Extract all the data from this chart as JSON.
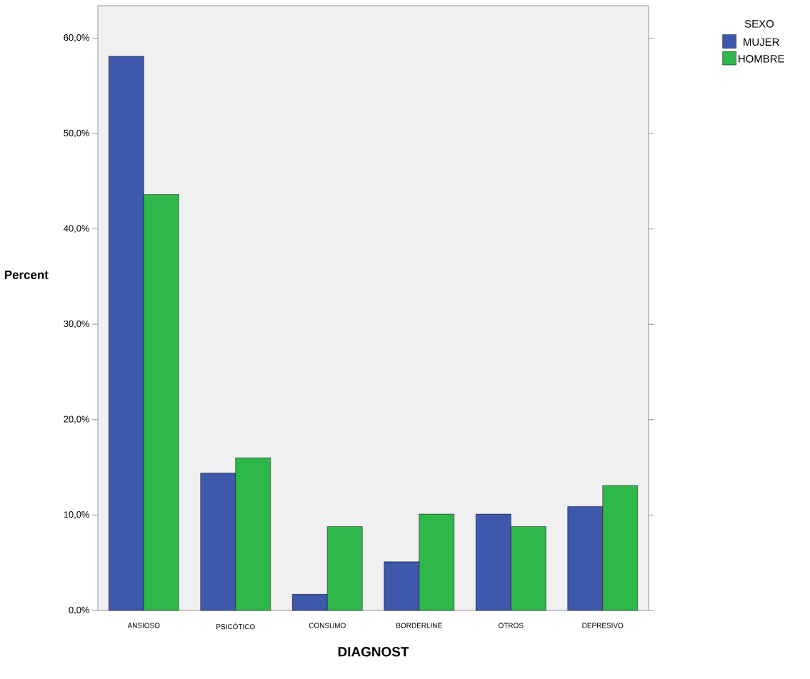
{
  "chart_data": {
    "type": "bar",
    "xlabel": "DIAGNOST",
    "ylabel": "Percent",
    "legend_title": "SEXO",
    "legend": "top right",
    "categories": [
      "ANSIOSO",
      "PSICÓTICO",
      "CONSUMO",
      "BORDERLINE",
      "OTROS",
      "DEPRESIVO"
    ],
    "series": [
      {
        "name": "MUJER",
        "color": "#3e58ac",
        "values": [
          58.1,
          14.4,
          1.7,
          5.1,
          10.1,
          10.9
        ]
      },
      {
        "name": "HOMBRE",
        "color": "#2fb84a",
        "values": [
          43.6,
          16.0,
          8.8,
          10.1,
          8.8,
          13.1
        ]
      }
    ],
    "ylim": [
      0,
      63.4
    ],
    "yticks": [
      {
        "value": 0,
        "label": "0,0%"
      },
      {
        "value": 10,
        "label": "10,0%"
      },
      {
        "value": 20,
        "label": "20,0%"
      },
      {
        "value": 30,
        "label": "30,0%"
      },
      {
        "value": 40,
        "label": "40,0%"
      },
      {
        "value": 50,
        "label": "50,0%"
      },
      {
        "value": 60,
        "label": "60,0%"
      }
    ],
    "grid": false
  }
}
